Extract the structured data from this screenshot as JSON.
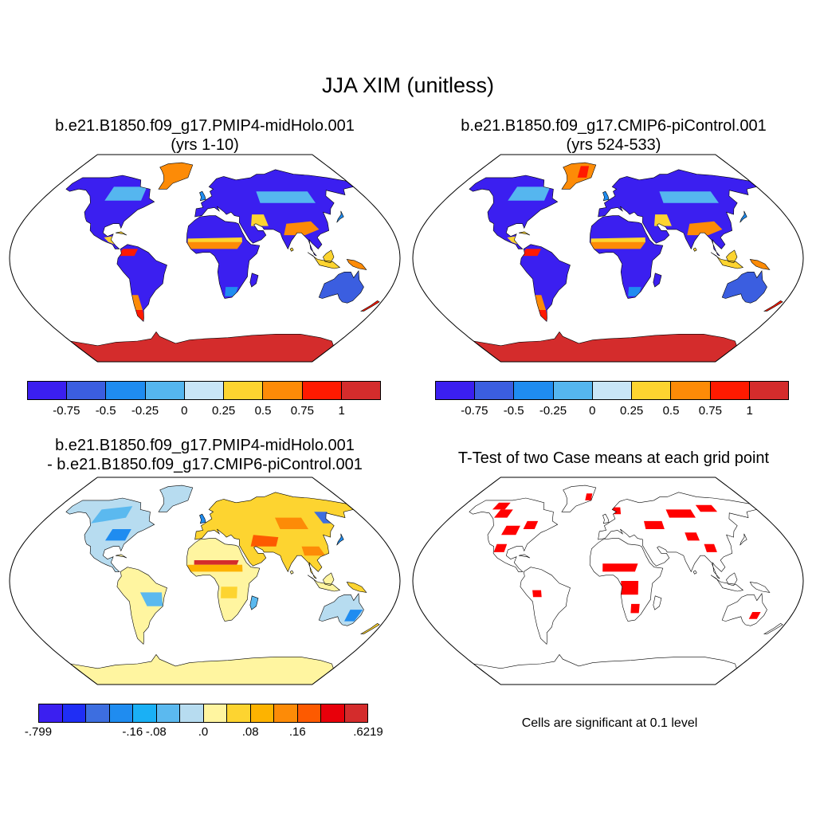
{
  "title": "JJA XIM (unitless)",
  "panels": [
    {
      "id": "p1",
      "title_line1": "b.e21.B1850.f09_g17.PMIP4-midHolo.001",
      "title_line2": "(yrs 1-10)"
    },
    {
      "id": "p2",
      "title_line1": "b.e21.B1850.f09_g17.CMIP6-piControl.001",
      "title_line2": "(yrs 524-533)"
    },
    {
      "id": "p3",
      "title_line1": "b.e21.B1850.f09_g17.PMIP4-midHolo.001",
      "title_line2": "- b.e21.B1850.f09_g17.CMIP6-piControl.001"
    },
    {
      "id": "p4",
      "title_line1": "T-Test of two Case means at each grid point",
      "title_line2": ""
    }
  ],
  "colorbar_top": {
    "colors": [
      "#3b1ff0",
      "#3b5ee0",
      "#1f8cf0",
      "#55b6ef",
      "#c9e6f7",
      "#fdd430",
      "#fd8b07",
      "#ff1a00",
      "#d42c2c"
    ],
    "ticks": [
      "-0.75",
      "-0.5",
      "-0.25",
      "0",
      "0.25",
      "0.5",
      "0.75",
      "1"
    ]
  },
  "colorbar_diff": {
    "colors": [
      "#3b1ff0",
      "#1f2ef5",
      "#3d6ee0",
      "#1f8cf0",
      "#1ab0f5",
      "#5bb9ef",
      "#b7dcf0",
      "#fff5a0",
      "#fdd430",
      "#fdb300",
      "#fd8b07",
      "#fd5a00",
      "#e8000a",
      "#d42c2c"
    ],
    "ticks": [
      "-.799",
      "-.16",
      "-.08",
      ".0",
      ".08",
      ".16",
      ".6219"
    ]
  },
  "significance_color": "#ff0000",
  "note": "Cells are significant at 0.1 level"
}
